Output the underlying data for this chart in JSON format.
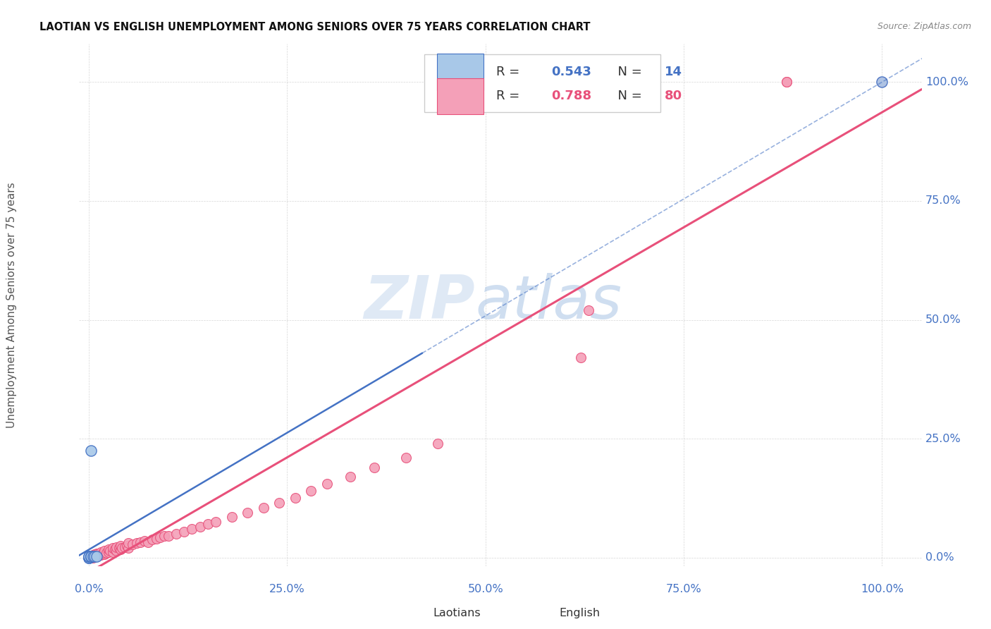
{
  "title": "LAOTIAN VS ENGLISH UNEMPLOYMENT AMONG SENIORS OVER 75 YEARS CORRELATION CHART",
  "source": "Source: ZipAtlas.com",
  "ylabel": "Unemployment Among Seniors over 75 years",
  "laotian_color": "#a8c8e8",
  "english_color": "#f4a0b8",
  "laotian_line_color": "#4472c4",
  "english_line_color": "#e8507a",
  "laotian_R": 0.543,
  "laotian_N": 14,
  "english_R": 0.788,
  "english_N": 80,
  "watermark_zip": "ZIP",
  "watermark_atlas": "atlas",
  "watermark_color_zip": "#c5d8ee",
  "watermark_color_atlas": "#a8c4e4",
  "tick_color": "#4472c4",
  "x_tick_vals": [
    0,
    0.25,
    0.5,
    0.75,
    1.0
  ],
  "x_tick_labels": [
    "0.0%",
    "25.0%",
    "50.0%",
    "75.0%",
    "100.0%"
  ],
  "y_tick_vals": [
    0,
    0.25,
    0.5,
    0.75,
    1.0
  ],
  "y_tick_labels": [
    "0.0%",
    "25.0%",
    "50.0%",
    "75.0%",
    "100.0%"
  ],
  "laotian_x": [
    0.0,
    0.0,
    0.0,
    0.0,
    0.0,
    0.003,
    0.003,
    0.003,
    0.003,
    0.003,
    0.005,
    0.007,
    0.01,
    1.0
  ],
  "laotian_y": [
    0.0,
    0.0,
    0.0,
    0.003,
    0.003,
    0.003,
    0.003,
    0.225,
    0.003,
    0.003,
    0.003,
    0.003,
    0.003,
    1.0
  ],
  "english_x": [
    0.0,
    0.0,
    0.0,
    0.0,
    0.0,
    0.0,
    0.0,
    0.003,
    0.003,
    0.003,
    0.005,
    0.005,
    0.005,
    0.007,
    0.007,
    0.007,
    0.01,
    0.01,
    0.01,
    0.012,
    0.012,
    0.015,
    0.015,
    0.015,
    0.018,
    0.018,
    0.02,
    0.02,
    0.02,
    0.022,
    0.025,
    0.025,
    0.027,
    0.03,
    0.03,
    0.033,
    0.035,
    0.035,
    0.038,
    0.04,
    0.04,
    0.042,
    0.045,
    0.048,
    0.05,
    0.05,
    0.055,
    0.06,
    0.065,
    0.07,
    0.075,
    0.08,
    0.085,
    0.09,
    0.095,
    0.1,
    0.11,
    0.12,
    0.13,
    0.14,
    0.15,
    0.16,
    0.18,
    0.2,
    0.22,
    0.24,
    0.26,
    0.28,
    0.3,
    0.33,
    0.36,
    0.4,
    0.44,
    0.62,
    0.63,
    0.88,
    0.88,
    1.0,
    1.0,
    1.0
  ],
  "english_y": [
    0.0,
    0.0,
    0.0,
    0.0,
    0.0,
    0.003,
    0.003,
    0.0,
    0.003,
    0.003,
    0.0,
    0.003,
    0.005,
    0.003,
    0.005,
    0.007,
    0.003,
    0.005,
    0.008,
    0.005,
    0.008,
    0.005,
    0.008,
    0.012,
    0.007,
    0.01,
    0.007,
    0.01,
    0.015,
    0.01,
    0.012,
    0.018,
    0.015,
    0.012,
    0.02,
    0.018,
    0.015,
    0.022,
    0.02,
    0.018,
    0.025,
    0.02,
    0.022,
    0.025,
    0.02,
    0.03,
    0.028,
    0.03,
    0.032,
    0.035,
    0.032,
    0.038,
    0.04,
    0.042,
    0.045,
    0.045,
    0.05,
    0.055,
    0.06,
    0.065,
    0.07,
    0.075,
    0.085,
    0.095,
    0.105,
    0.115,
    0.125,
    0.14,
    0.155,
    0.17,
    0.19,
    0.21,
    0.24,
    0.42,
    0.52,
    1.0,
    1.0,
    1.0,
    1.0,
    1.0
  ]
}
